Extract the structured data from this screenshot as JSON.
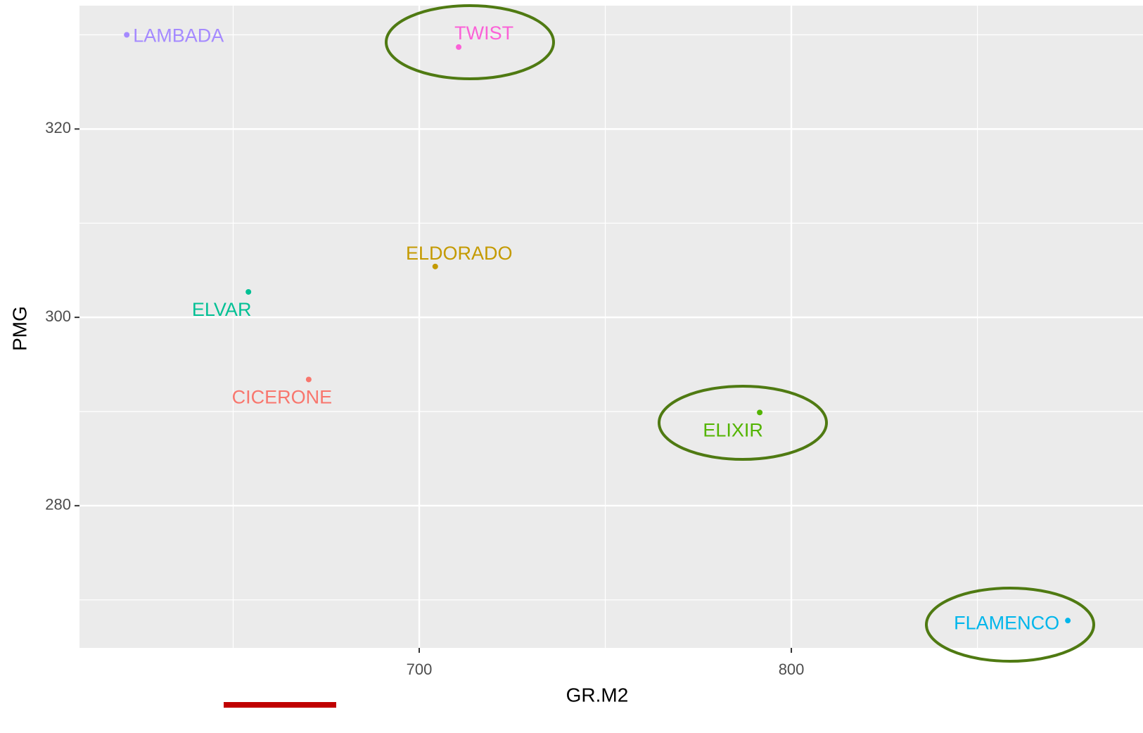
{
  "chart_data": {
    "type": "scatter",
    "x_label": "GR.M2",
    "y_label": "PMG",
    "series": [
      {
        "name": "CICERONE",
        "color": "#F8766D",
        "x": [
          670.3
        ],
        "values": [
          293.4
        ]
      },
      {
        "name": "ELDORADO",
        "color": "#C49A00",
        "x": [
          704.3
        ],
        "values": [
          305.4
        ]
      },
      {
        "name": "ELIXIR",
        "color": "#53B400",
        "x": [
          791.5
        ],
        "values": [
          289.9
        ]
      },
      {
        "name": "ELVAR",
        "color": "#00C094",
        "x": [
          654.1
        ],
        "values": [
          302.7
        ]
      },
      {
        "name": "FLAMENCO",
        "color": "#00B6EB",
        "x": [
          874.3
        ],
        "values": [
          267.8
        ]
      },
      {
        "name": "LAMBADA",
        "color": "#A58AFF",
        "x": [
          621.4
        ],
        "values": [
          330.0
        ]
      },
      {
        "name": "TWIST",
        "color": "#FB61D7",
        "x": [
          710.6
        ],
        "values": [
          328.7
        ]
      }
    ],
    "xlim": [
      608.7,
      894.5
    ],
    "xticks": [
      700,
      800
    ],
    "minor_xticks": [
      650,
      750,
      850
    ],
    "ylim": [
      264.9,
      333.1
    ],
    "yticks": [
      280,
      300,
      320
    ],
    "minor_yticks": [
      270,
      290,
      310,
      330
    ],
    "grid": true
  }
}
